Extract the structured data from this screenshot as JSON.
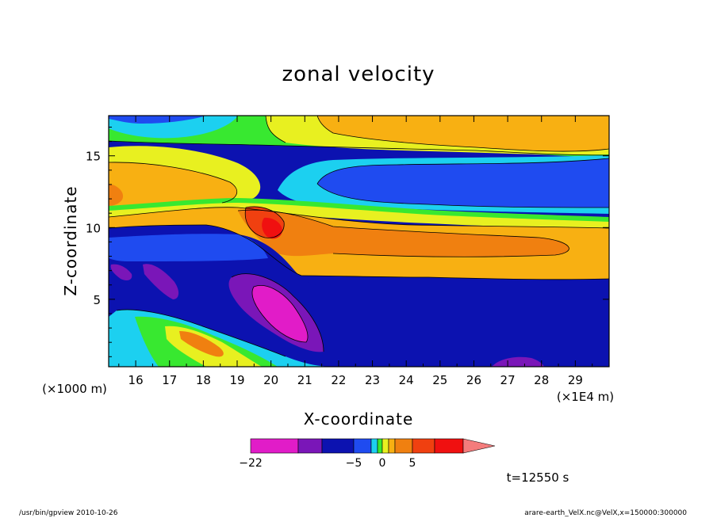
{
  "chart_data": {
    "type": "heatmap",
    "title": "zonal velocity",
    "xlabel": "X-coordinate",
    "ylabel": "Z-coordinate",
    "x_unit": "(×1E4 m)",
    "y_unit": "(×1000 m)",
    "xlim": [
      15.2,
      30.0
    ],
    "ylim": [
      0.3,
      17.8
    ],
    "x_ticks": [
      16,
      17,
      18,
      19,
      20,
      21,
      22,
      23,
      24,
      25,
      26,
      27,
      28,
      29
    ],
    "y_ticks": [
      5,
      10,
      15
    ],
    "time_label": "t=12550 s",
    "colorbar": {
      "labels": [
        {
          "text": "−22",
          "value": -22
        },
        {
          "text": "−5",
          "value": -5
        },
        {
          "text": "0",
          "value": 0
        },
        {
          "text": "5",
          "value": 5
        }
      ],
      "colors": [
        "#e11cc8",
        "#7a16b8",
        "#0c12b0",
        "#1f4bf0",
        "#1cd0f0",
        "#38e830",
        "#e8f020",
        "#f8b012",
        "#f08010",
        "#f04010",
        "#f01010",
        "#f47c7c"
      ]
    },
    "regions": {
      "upper_east_positive": {
        "value": 6,
        "color": "#f8b012"
      },
      "upper_cyan_band": {
        "value": -2,
        "color": "#1cd0f0"
      },
      "upper_east_jet": {
        "value": -5,
        "color": "#0c12b0"
      },
      "tilted_westerly_jet": {
        "value": 7,
        "color": "#f08010"
      },
      "jet_core_max": {
        "value": 12,
        "color": "#f01010"
      },
      "lower_easterly": {
        "value": -8,
        "color": "#0c12b0"
      },
      "lower_minimum": {
        "value": -22,
        "color": "#e11cc8"
      }
    }
  },
  "footer": {
    "left": "/usr/bin/gpview   2010-10-26",
    "right": "arare-earth_VelX.nc@VelX,x=150000:300000"
  }
}
